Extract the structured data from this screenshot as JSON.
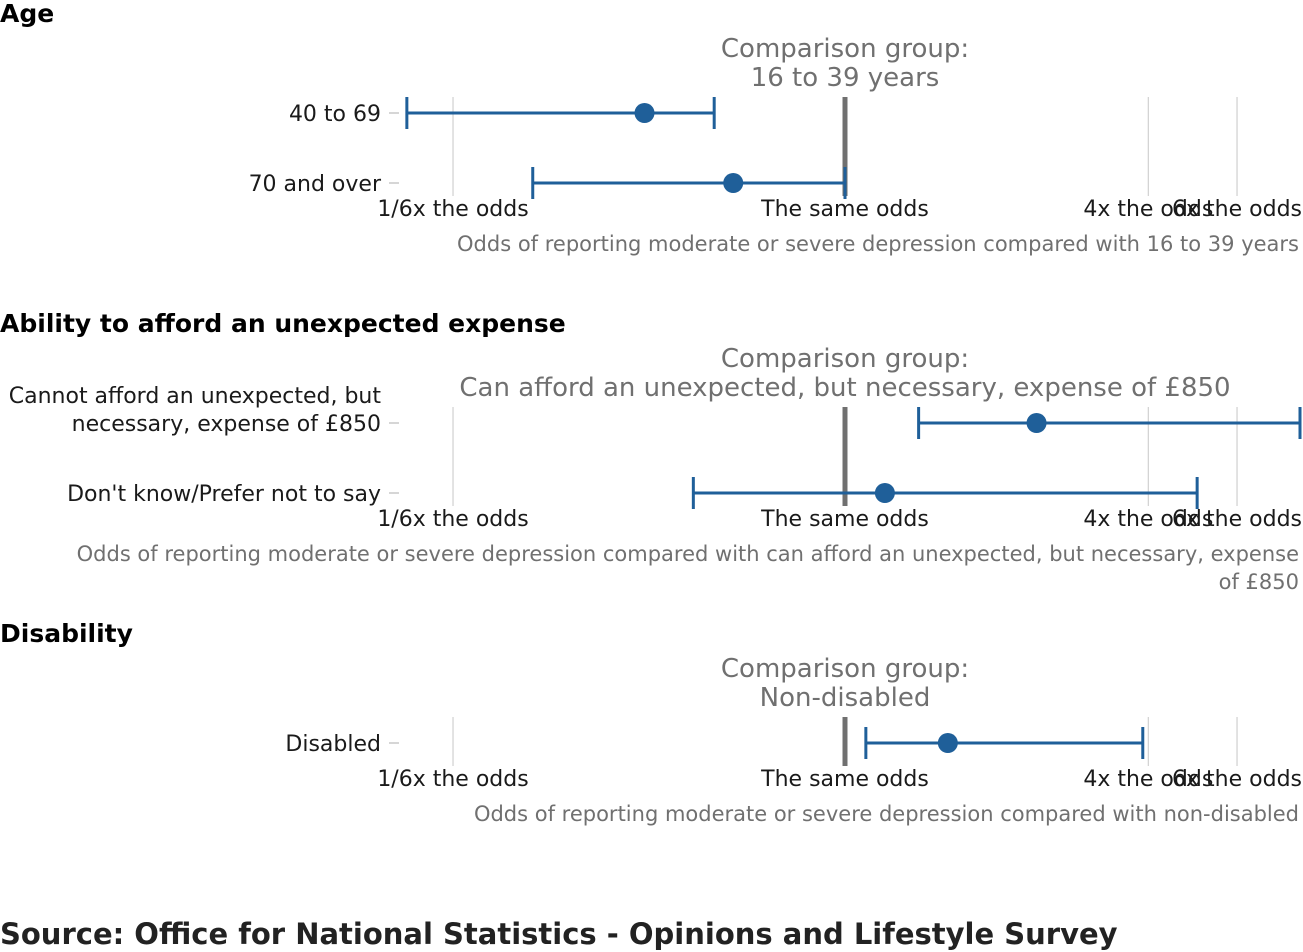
{
  "source": "Source: Office for National Statistics - Opinions and Lifestyle Survey",
  "colors": {
    "point": "#1f5f99",
    "reference": "#707070",
    "grid": "#d0d0d0"
  },
  "chart_data": [
    {
      "type": "scatter",
      "title": "Age",
      "reference_lines": [
        "Comparison group:",
        "16 to 39 years"
      ],
      "xlabel_lines": [
        "Odds of reporting moderate or severe depression compared with 16 to 39 years"
      ],
      "x_scale": "log",
      "x_ticks": [
        {
          "value": 0.1667,
          "label": "1/6x the odds"
        },
        {
          "value": 1,
          "label": "The same odds"
        },
        {
          "value": 4,
          "label": "4x the odds"
        },
        {
          "value": 6,
          "label": "6x the odds"
        }
      ],
      "categories": [
        {
          "label_lines": [
            "40 to 69"
          ],
          "estimate": 0.4,
          "lower": 0.135,
          "upper": 0.55
        },
        {
          "label_lines": [
            "70 and over"
          ],
          "estimate": 0.6,
          "lower": 0.24,
          "upper": 1.0
        }
      ]
    },
    {
      "type": "scatter",
      "title": "Ability to afford an unexpected expense",
      "reference_lines": [
        "Comparison group:",
        "Can afford an unexpected, but necessary, expense of £850"
      ],
      "xlabel_lines": [
        "Odds of reporting moderate or severe depression compared with can afford an unexpected, but necessary, expense",
        "of £850"
      ],
      "x_scale": "log",
      "x_ticks": [
        {
          "value": 0.1667,
          "label": "1/6x the odds"
        },
        {
          "value": 1,
          "label": "The same odds"
        },
        {
          "value": 4,
          "label": "4x the odds"
        },
        {
          "value": 6,
          "label": "6x the odds"
        }
      ],
      "categories": [
        {
          "label_lines": [
            "Cannot afford an unexpected, but",
            "necessary, expense of £850"
          ],
          "estimate": 2.4,
          "lower": 1.4,
          "upper": 9.0
        },
        {
          "label_lines": [
            "Don't know/Prefer not to say"
          ],
          "estimate": 1.2,
          "lower": 0.5,
          "upper": 5.0
        }
      ]
    },
    {
      "type": "scatter",
      "title": "Disability",
      "reference_lines": [
        "Comparison group:",
        "Non-disabled"
      ],
      "xlabel_lines": [
        "Odds of reporting moderate or severe depression compared with non-disabled"
      ],
      "x_scale": "log",
      "x_ticks": [
        {
          "value": 0.1667,
          "label": "1/6x the odds"
        },
        {
          "value": 1,
          "label": "The same odds"
        },
        {
          "value": 4,
          "label": "4x the odds"
        },
        {
          "value": 6,
          "label": "6x the odds"
        }
      ],
      "categories": [
        {
          "label_lines": [
            "Disabled"
          ],
          "estimate": 1.6,
          "lower": 1.1,
          "upper": 3.9
        }
      ]
    }
  ]
}
